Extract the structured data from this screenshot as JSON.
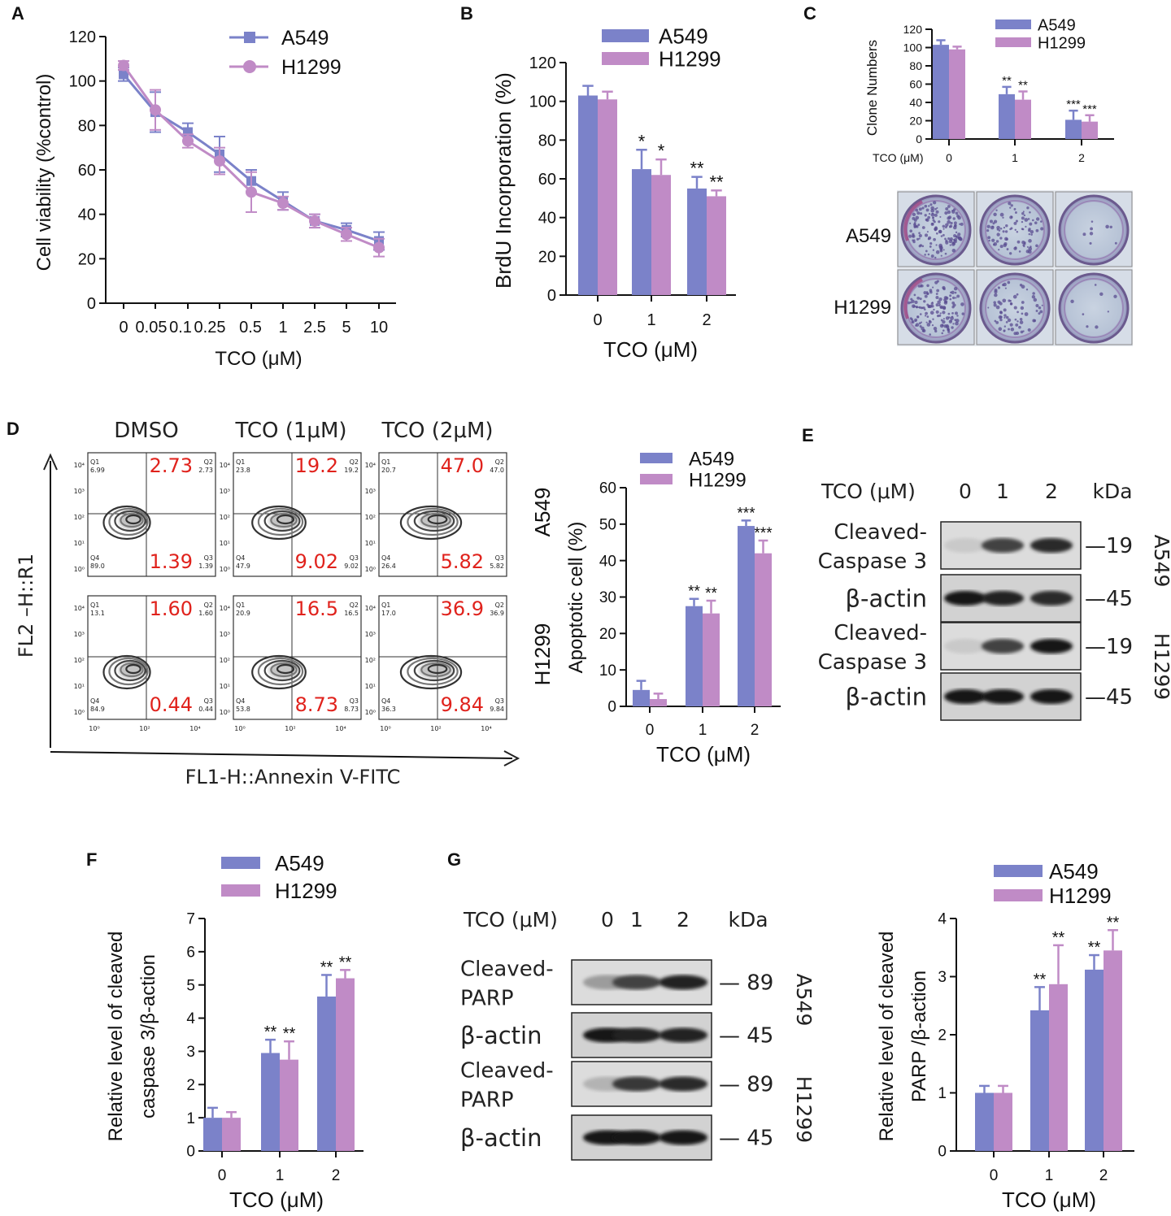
{
  "colors": {
    "a549": "#7b82c9",
    "h1299": "#c08bc6",
    "axis": "#111111",
    "annotation_red": "#e0221c"
  },
  "chart_data": [
    {
      "id": "A",
      "type": "line",
      "panel_letter": "A",
      "xlabel": "TCO (μM)",
      "ylabel": "Cell viability (%control)",
      "categories": [
        "0",
        "0.05",
        "0.1",
        "0.25",
        "0.5",
        "1",
        "2.5",
        "5",
        "10"
      ],
      "yticks": [
        "0",
        "20",
        "40",
        "60",
        "80",
        "100",
        "120"
      ],
      "ylim": [
        0,
        120
      ],
      "series": [
        {
          "name": "A549",
          "values": [
            103,
            86,
            77,
            67,
            55,
            46,
            37,
            33,
            28
          ],
          "err": [
            3,
            9,
            4,
            8,
            5,
            4,
            3,
            3,
            4
          ]
        },
        {
          "name": "H1299",
          "values": [
            107,
            87,
            73,
            64,
            50,
            45,
            37,
            31,
            25
          ],
          "err": [
            2,
            9,
            3,
            6,
            9,
            3,
            3,
            3,
            4
          ]
        }
      ]
    },
    {
      "id": "B",
      "type": "bar",
      "panel_letter": "B",
      "xlabel": "TCO (μM)",
      "ylabel": "BrdU Incorporation (%)",
      "categories": [
        "0",
        "1",
        "2"
      ],
      "yticks": [
        "0",
        "20",
        "40",
        "60",
        "80",
        "100",
        "120"
      ],
      "ylim": [
        0,
        120
      ],
      "series": [
        {
          "name": "A549",
          "values": [
            103,
            65,
            55
          ],
          "err": [
            5,
            10,
            6
          ],
          "sig": [
            "",
            "*",
            "**"
          ]
        },
        {
          "name": "H1299",
          "values": [
            101,
            62,
            51
          ],
          "err": [
            4,
            8,
            3
          ],
          "sig": [
            "",
            "*",
            "**"
          ]
        }
      ]
    },
    {
      "id": "C",
      "type": "bar",
      "panel_letter": "C",
      "xlabel": "TCO (μM)",
      "ylabel": "Clone Numbers",
      "categories": [
        "0",
        "1",
        "2"
      ],
      "yticks": [
        "0",
        "20",
        "40",
        "60",
        "80",
        "100",
        "120"
      ],
      "ylim": [
        0,
        120
      ],
      "series": [
        {
          "name": "A549",
          "values": [
            103,
            49,
            21
          ],
          "err": [
            5,
            8,
            10
          ],
          "sig": [
            "",
            "**",
            "***"
          ]
        },
        {
          "name": "H1299",
          "values": [
            98,
            43,
            19
          ],
          "err": [
            3,
            9,
            7
          ],
          "sig": [
            "",
            "**",
            "***"
          ]
        }
      ]
    },
    {
      "id": "D",
      "type": "bar",
      "panel_letter": "D",
      "xlabel": "TCO (μM)",
      "ylabel": "Apoptotic cell (%)",
      "categories": [
        "0",
        "1",
        "2"
      ],
      "yticks": [
        "0",
        "10",
        "20",
        "30",
        "40",
        "50",
        "60"
      ],
      "ylim": [
        0,
        60
      ],
      "series": [
        {
          "name": "A549",
          "values": [
            4.5,
            27.5,
            49.5
          ],
          "err": [
            2.5,
            2,
            1.5
          ],
          "sig": [
            "",
            "**",
            "***"
          ]
        },
        {
          "name": "H1299",
          "values": [
            2,
            25.5,
            42
          ],
          "err": [
            1.5,
            3.5,
            3.5
          ],
          "sig": [
            "",
            "**",
            "***"
          ]
        }
      ]
    },
    {
      "id": "F",
      "type": "bar",
      "panel_letter": "F",
      "xlabel": "TCO (μM)",
      "ylabel_line1": "Relative level of cleaved",
      "ylabel_line2": "caspase 3/β-action",
      "categories": [
        "0",
        "1",
        "2"
      ],
      "yticks": [
        "0",
        "1",
        "2",
        "3",
        "4",
        "5",
        "6",
        "7"
      ],
      "ylim": [
        0,
        7
      ],
      "series": [
        {
          "name": "A549",
          "values": [
            1,
            2.95,
            4.65
          ],
          "err": [
            0.3,
            0.4,
            0.65
          ],
          "sig": [
            "",
            "**",
            "**"
          ]
        },
        {
          "name": "H1299",
          "values": [
            1,
            2.75,
            5.2
          ],
          "err": [
            0.17,
            0.55,
            0.25
          ],
          "sig": [
            "",
            "**",
            "**"
          ]
        }
      ]
    },
    {
      "id": "G2",
      "type": "bar",
      "xlabel": "TCO (μM)",
      "ylabel_line1": "Relative level of cleaved",
      "ylabel_line2": "PARP /β-action",
      "categories": [
        "0",
        "1",
        "2"
      ],
      "yticks": [
        "0",
        "1",
        "2",
        "3",
        "4"
      ],
      "ylim": [
        0,
        4
      ],
      "series": [
        {
          "name": "A549",
          "values": [
            1,
            2.42,
            3.12
          ],
          "err": [
            0.12,
            0.4,
            0.25
          ],
          "sig": [
            "",
            "**",
            "**"
          ]
        },
        {
          "name": "H1299",
          "values": [
            1,
            2.87,
            3.45
          ],
          "err": [
            0.12,
            0.67,
            0.35
          ],
          "sig": [
            "",
            "**",
            "**"
          ]
        }
      ]
    }
  ],
  "panel_c_images": {
    "row_labels": [
      "A549",
      "H1299"
    ]
  },
  "panel_d_flow": {
    "column_titles": [
      "DMSO",
      "TCO (1μM)",
      "TCO (2μM)"
    ],
    "row_labels": [
      "A549",
      "H1299"
    ],
    "y_axis_label": "FL2 –H::R1",
    "x_axis_label": "FL1-H::Annexin V-FITC",
    "quadrant_labels": [
      "Q1",
      "Q2",
      "Q3",
      "Q4"
    ],
    "plots": [
      {
        "q2": "2.73",
        "q3": "1.39",
        "q1_small": "6.99",
        "q4_small": "89.0",
        "q2_small": "2.73",
        "q3_small": "1.39"
      },
      {
        "q2": "19.2",
        "q3": "9.02",
        "q1_small": "23.8",
        "q4_small": "47.9",
        "q2_small": "19.2",
        "q3_small": "9.02"
      },
      {
        "q2": "47.0",
        "q3": "5.82",
        "q1_small": "20.7",
        "q4_small": "26.4",
        "q2_small": "47.0",
        "q3_small": "5.82"
      },
      {
        "q2": "1.60",
        "q3": "0.44",
        "q1_small": "13.1",
        "q4_small": "84.9",
        "q2_small": "1.60",
        "q3_small": "0.44"
      },
      {
        "q2": "16.5",
        "q3": "8.73",
        "q1_small": "20.9",
        "q4_small": "53.8",
        "q2_small": "16.5",
        "q3_small": "8.73"
      },
      {
        "q2": "36.9",
        "q3": "9.84",
        "q1_small": "17.0",
        "q4_small": "36.3",
        "q2_small": "36.9",
        "q3_small": "9.84"
      }
    ],
    "tick_labels": [
      "10⁰",
      "10¹",
      "10²",
      "10³",
      "10⁴"
    ]
  },
  "panel_e_blot": {
    "panel_letter": "E",
    "header": "TCO (μM)",
    "lanes": [
      "0",
      "1",
      "2"
    ],
    "kda_label": "kDa",
    "rows": [
      {
        "label_line1": "Cleaved-",
        "label_line2": "Caspase 3",
        "kda": "—19",
        "intensity": [
          0.15,
          0.75,
          0.85
        ]
      },
      {
        "label_line1": "β-actin",
        "kda": "—45",
        "intensity": [
          0.95,
          0.9,
          0.85
        ]
      },
      {
        "label_line1": "Cleaved-",
        "label_line2": "Caspase 3",
        "kda": "—19",
        "intensity": [
          0.15,
          0.75,
          0.95
        ]
      },
      {
        "label_line1": "β-actin",
        "kda": "—45",
        "intensity": [
          0.95,
          0.95,
          0.95
        ]
      }
    ],
    "cell_lines": [
      "A549",
      "H1299"
    ]
  },
  "panel_g_blot": {
    "panel_letter": "G",
    "header": "TCO (μM)",
    "lanes": [
      "0",
      "1",
      "2"
    ],
    "kda_label": "kDa",
    "rows": [
      {
        "label_line1": "Cleaved-",
        "label_line2": "PARP",
        "kda": "— 89",
        "intensity": [
          0.35,
          0.75,
          0.9
        ]
      },
      {
        "label_line1": "β-actin",
        "kda": "— 45",
        "intensity": [
          0.95,
          0.9,
          0.9
        ]
      },
      {
        "label_line1": "Cleaved-",
        "label_line2": "PARP",
        "kda": "— 89",
        "intensity": [
          0.25,
          0.8,
          0.85
        ]
      },
      {
        "label_line1": "β-actin",
        "kda": "— 45",
        "intensity": [
          0.95,
          0.95,
          0.95
        ]
      }
    ],
    "cell_lines": [
      "A549",
      "H1299"
    ]
  }
}
